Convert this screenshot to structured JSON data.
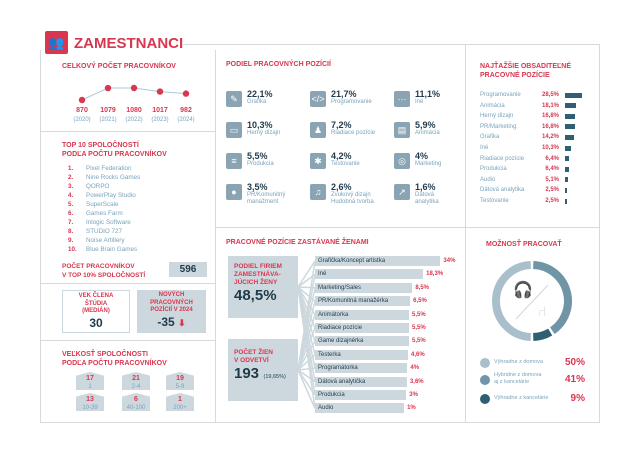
{
  "header": {
    "title": "ZAMESTNANCI",
    "icon": "people-icon"
  },
  "total_workers": {
    "title": "CELKOVÝ POČET PRACOVNÍKOV",
    "points": [
      {
        "value": 870,
        "year": "(2020)"
      },
      {
        "value": 1079,
        "year": "(2021)"
      },
      {
        "value": 1080,
        "year": "(2022)"
      },
      {
        "value": 1017,
        "year": "(2023)"
      },
      {
        "value": 982,
        "year": "(2024)"
      }
    ]
  },
  "top10": {
    "title1": "TOP 10 SPOLOČNOSTÍ",
    "title2": "PODĽA POČTU PRACOVNÍKOV",
    "items": [
      {
        "n": "1.",
        "name": "Pixel Federation"
      },
      {
        "n": "2.",
        "name": "Nine Rocks Games"
      },
      {
        "n": "3.",
        "name": "QORPO"
      },
      {
        "n": "4.",
        "name": "PowerPlay Studio"
      },
      {
        "n": "5.",
        "name": "SuperScale"
      },
      {
        "n": "6.",
        "name": "Games Farm"
      },
      {
        "n": "7.",
        "name": "Inlogic Software"
      },
      {
        "n": "8.",
        "name": "STUDIO 727"
      },
      {
        "n": "9.",
        "name": "Noise Artillery"
      },
      {
        "n": "10.",
        "name": "Blue Brain Games"
      }
    ],
    "count_label1": "POČET PRACOVNÍKOV",
    "count_label2": "V TOP 10% SPOLOČNOSTÍ",
    "count": "596"
  },
  "age": {
    "l1": "VEK ČLENA",
    "l2": "ŠTÚDIA",
    "l3": "(MEDIÁN)",
    "value": "30"
  },
  "new_positions": {
    "l1": "NOVÝCH",
    "l2": "PRACOVNÝCH",
    "l3": "POZÍCIÍ V 2024",
    "value": "-35"
  },
  "size": {
    "title1": "VEĽKOSŤ SPOLOČNOSTI",
    "title2": "PODĽA POČTU PRACOVNÍKOV",
    "items": [
      {
        "count": "17",
        "range": "1"
      },
      {
        "count": "21",
        "range": "2-4"
      },
      {
        "count": "19",
        "range": "5-9"
      },
      {
        "count": "13",
        "range": "10-39"
      },
      {
        "count": "6",
        "range": "40-100"
      },
      {
        "count": "1",
        "range": "200+"
      }
    ]
  },
  "positions": {
    "title": "PODIEL PRACOVNÝCH POZÍCIÍ",
    "items": [
      {
        "pct": "22,1%",
        "l1": "Grafika",
        "l2": "",
        "icon": "pen-icon",
        "g": "✎"
      },
      {
        "pct": "21,7%",
        "l1": "Programovanie",
        "l2": "",
        "icon": "code-icon",
        "g": "</>"
      },
      {
        "pct": "11,1%",
        "l1": "Iné",
        "l2": "",
        "icon": "dots-icon",
        "g": "···"
      },
      {
        "pct": "10,3%",
        "l1": "Herný dizajn",
        "l2": "",
        "icon": "design-icon",
        "g": "▭"
      },
      {
        "pct": "7,2%",
        "l1": "Riadiace pozície",
        "l2": "",
        "icon": "manager-icon",
        "g": "♟"
      },
      {
        "pct": "5,9%",
        "l1": "Animácia",
        "l2": "",
        "icon": "film-icon",
        "g": "▤"
      },
      {
        "pct": "5,5%",
        "l1": "Produkcia",
        "l2": "",
        "icon": "gantt-icon",
        "g": "≡"
      },
      {
        "pct": "4,2%",
        "l1": "Testovanie",
        "l2": "",
        "icon": "bug-icon",
        "g": "✱"
      },
      {
        "pct": "4%",
        "l1": "Marketing",
        "l2": "",
        "icon": "target-icon",
        "g": "◎"
      },
      {
        "pct": "3,5%",
        "l1": "PR/Komunitný",
        "l2": "manažment",
        "icon": "chat-icon",
        "g": "●"
      },
      {
        "pct": "2,6%",
        "l1": "Zvukový dizajn",
        "l2": "Hudobná tvorba",
        "icon": "music-icon",
        "g": "♫"
      },
      {
        "pct": "1,6%",
        "l1": "Dátová",
        "l2": "analytika",
        "icon": "chart-icon",
        "g": "↗"
      }
    ]
  },
  "women": {
    "title": "PRACOVNÉ POZÍCIE ZASTÁVANÉ ŽENAMI",
    "firms": {
      "l1": "PODIEL FIRIEM",
      "l2": "ZAMESTNÁVA-",
      "l3": "JÚCICH ŽENY",
      "value": "48,5%"
    },
    "count": {
      "l1": "POČET ŽIEN",
      "l2": "V ODVETVÍ",
      "value": "193",
      "pct": "(19,65%)"
    },
    "bars": [
      {
        "label": "Grafička/Koncept artistka",
        "value": 34,
        "text": "34%"
      },
      {
        "label": "Iné",
        "value": 18.3,
        "text": "18,3%"
      },
      {
        "label": "Marketing/Sales",
        "value": 8.5,
        "text": "8,5%"
      },
      {
        "label": "PR/Komunitná manažérka",
        "value": 6.5,
        "text": "6,5%"
      },
      {
        "label": "Animátorka",
        "value": 5.5,
        "text": "5,5%"
      },
      {
        "label": "Riadiace pozície",
        "value": 5.5,
        "text": "5,5%"
      },
      {
        "label": "Game dizajnérka",
        "value": 5.5,
        "text": "5,5%"
      },
      {
        "label": "Testerka",
        "value": 4.6,
        "text": "4,6%"
      },
      {
        "label": "Programátorka",
        "value": 4,
        "text": "4%"
      },
      {
        "label": "Dátová analytička",
        "value": 3.6,
        "text": "3,6%"
      },
      {
        "label": "Produkcia",
        "value": 3,
        "text": "3%"
      },
      {
        "label": "Audio",
        "value": 1,
        "text": "1%"
      }
    ]
  },
  "hardest": {
    "title1": "NAJŤAŽŠIE OBSADITEĽNÉ",
    "title2": "PRACOVNÉ POZÍCIE",
    "rows": [
      {
        "label": "Programovanie",
        "value": 28.5,
        "text": "28,5%"
      },
      {
        "label": "Animácia",
        "value": 18.1,
        "text": "18,1%"
      },
      {
        "label": "Herný dizajn",
        "value": 16.8,
        "text": "16,8%"
      },
      {
        "label": "PR/Marketing",
        "value": 16.8,
        "text": "16,8%"
      },
      {
        "label": "Grafika",
        "value": 14.2,
        "text": "14,2%"
      },
      {
        "label": "Iné",
        "value": 10.3,
        "text": "10,3%"
      },
      {
        "label": "Riadiace pozície",
        "value": 6.4,
        "text": "6,4%"
      },
      {
        "label": "Produkcia",
        "value": 6.4,
        "text": "6,4%"
      },
      {
        "label": "Audio",
        "value": 5.1,
        "text": "5,1%"
      },
      {
        "label": "Dátová analytika",
        "value": 2.5,
        "text": "2,5%"
      },
      {
        "label": "Testovanie",
        "value": 2.5,
        "text": "2,5%"
      }
    ]
  },
  "work": {
    "title": "MOŽNOSŤ PRACOVAŤ",
    "items": [
      {
        "l1": "Výhradne z domova",
        "l2": "",
        "value": 50,
        "text": "50%",
        "color": "#a9bfcb"
      },
      {
        "l1": "Hybridne z domova",
        "l2": "aj z kancelárie",
        "value": 41,
        "text": "41%",
        "color": "#6f95a7"
      },
      {
        "l1": "Výhradne z kancelárie",
        "l2": "",
        "value": 9,
        "text": "9%",
        "color": "#2f5f72"
      }
    ]
  },
  "colors": {
    "accent": "#d9364f",
    "dark": "#1f3a4a",
    "panel": "#cdd8de"
  }
}
